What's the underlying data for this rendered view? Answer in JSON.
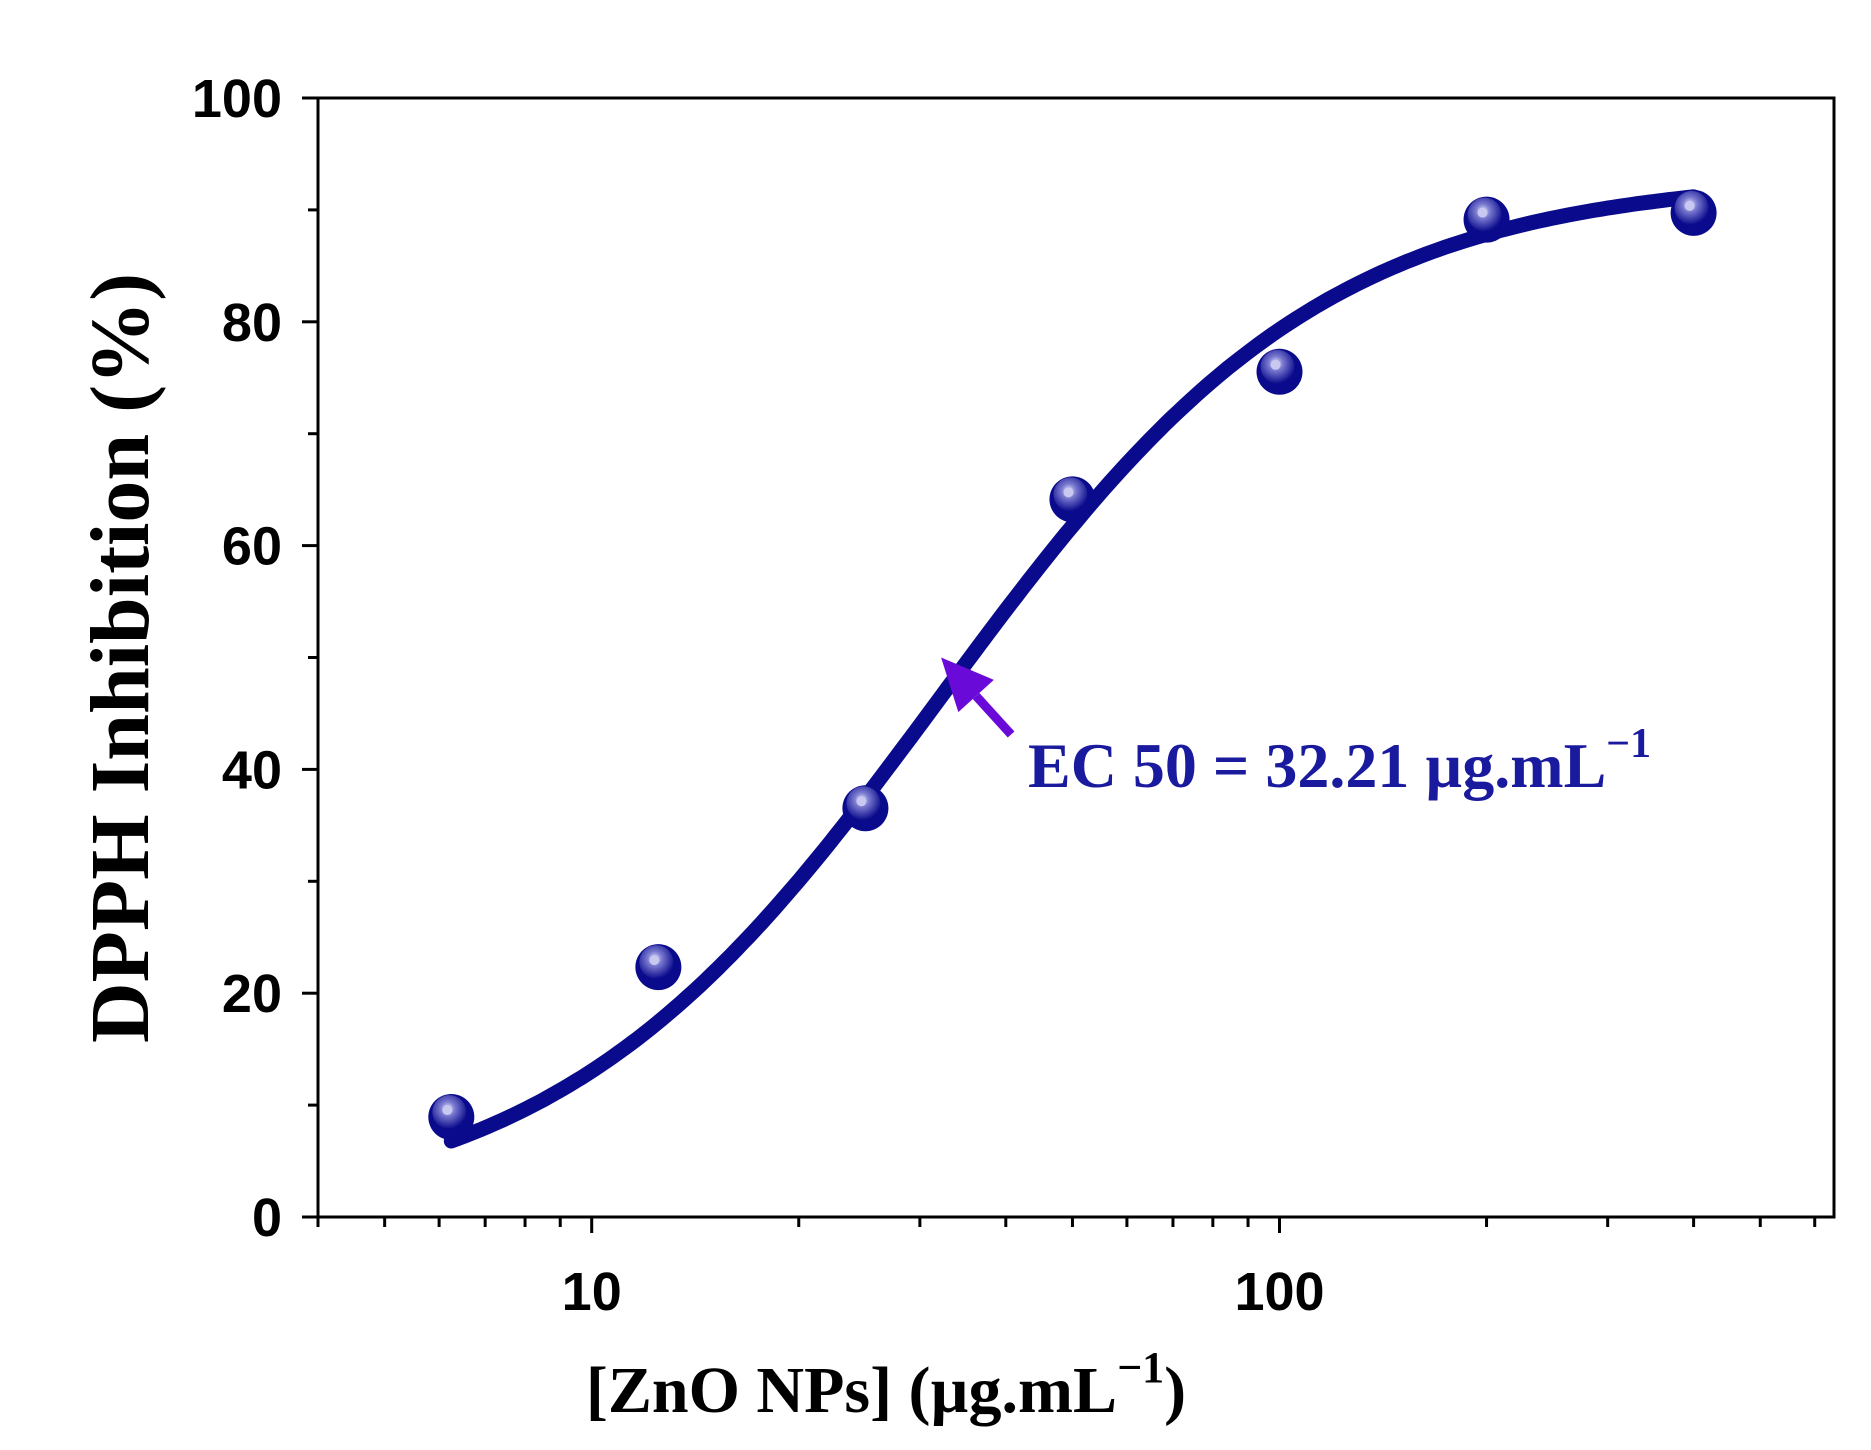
{
  "chart_data": {
    "type": "scatter",
    "title": "",
    "xlabel": "[ZnO NPs] (µg.mL",
    "xlabel_sup": "−1",
    "xlabel_tail": ")",
    "ylabel": "DPPH Inhibition (%)",
    "xscale": "log",
    "xlim": [
      4,
      640
    ],
    "ylim": [
      0,
      100
    ],
    "x_major_ticks": [
      10,
      100
    ],
    "x_tick_labels": [
      "10",
      "100"
    ],
    "y_major_ticks": [
      0,
      20,
      40,
      60,
      80,
      100
    ],
    "y_tick_labels": [
      "0",
      "20",
      "40",
      "60",
      "80",
      "100"
    ],
    "series": [
      {
        "name": "DPPH inhibition",
        "x": [
          6.25,
          12.5,
          25,
          50,
          100,
          200,
          400
        ],
        "y": [
          9.2,
          22.6,
          36.8,
          64.4,
          75.8,
          89.4,
          90.0
        ]
      }
    ],
    "fit": {
      "name": "sigmoidal fit",
      "model": "logistic",
      "min": 0,
      "max": 93,
      "ec50": 32.21,
      "hill": 1.55
    },
    "annotation": {
      "label": "EC 50 = 32.21 µg.mL",
      "label_sup": "−1",
      "arrow_x": 32.21,
      "arrow_y": 50
    },
    "colors": {
      "series": "#0a0a8c",
      "marker_highlight": "#c8c8f0",
      "arrow": "#6a0ad8",
      "annotation_text": "#1a1a9e",
      "axes": "#000000"
    }
  }
}
